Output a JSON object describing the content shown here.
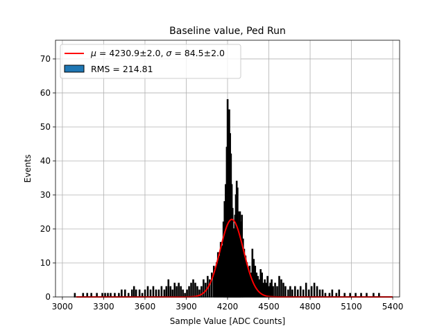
{
  "chart_data": {
    "type": "histogram",
    "title": "Baseline value, Ped Run",
    "xlabel": "Sample Value [ADC Counts]",
    "ylabel": "Events",
    "xlim": [
      2950,
      5450
    ],
    "ylim": [
      0,
      75.5
    ],
    "xticks": [
      3000,
      3300,
      3600,
      3900,
      4200,
      4500,
      4800,
      5100,
      5400
    ],
    "yticks": [
      0,
      10,
      20,
      30,
      40,
      50,
      60,
      70
    ],
    "grid": true,
    "legend_position": "top-left",
    "series": [
      {
        "name": "RMS = 214.81",
        "kind": "histogram",
        "color": "#1f77b4",
        "edgecolor": "#000000",
        "bins": [
          {
            "x": 3090,
            "y": 1
          },
          {
            "x": 3150,
            "y": 1
          },
          {
            "x": 3180,
            "y": 1
          },
          {
            "x": 3210,
            "y": 1
          },
          {
            "x": 3250,
            "y": 1
          },
          {
            "x": 3290,
            "y": 1
          },
          {
            "x": 3310,
            "y": 1
          },
          {
            "x": 3330,
            "y": 1
          },
          {
            "x": 3350,
            "y": 1
          },
          {
            "x": 3380,
            "y": 1
          },
          {
            "x": 3410,
            "y": 1
          },
          {
            "x": 3430,
            "y": 2
          },
          {
            "x": 3455,
            "y": 2
          },
          {
            "x": 3480,
            "y": 1
          },
          {
            "x": 3505,
            "y": 2
          },
          {
            "x": 3520,
            "y": 3
          },
          {
            "x": 3535,
            "y": 2
          },
          {
            "x": 3560,
            "y": 2
          },
          {
            "x": 3580,
            "y": 1
          },
          {
            "x": 3600,
            "y": 2
          },
          {
            "x": 3620,
            "y": 3
          },
          {
            "x": 3640,
            "y": 2
          },
          {
            "x": 3660,
            "y": 3
          },
          {
            "x": 3680,
            "y": 2
          },
          {
            "x": 3700,
            "y": 2
          },
          {
            "x": 3720,
            "y": 3
          },
          {
            "x": 3740,
            "y": 2
          },
          {
            "x": 3755,
            "y": 3
          },
          {
            "x": 3770,
            "y": 5
          },
          {
            "x": 3785,
            "y": 3
          },
          {
            "x": 3800,
            "y": 2
          },
          {
            "x": 3815,
            "y": 4
          },
          {
            "x": 3830,
            "y": 3
          },
          {
            "x": 3845,
            "y": 4
          },
          {
            "x": 3860,
            "y": 3
          },
          {
            "x": 3875,
            "y": 2
          },
          {
            "x": 3890,
            "y": 1
          },
          {
            "x": 3905,
            "y": 2
          },
          {
            "x": 3920,
            "y": 3
          },
          {
            "x": 3935,
            "y": 4
          },
          {
            "x": 3950,
            "y": 5
          },
          {
            "x": 3965,
            "y": 4
          },
          {
            "x": 3980,
            "y": 3
          },
          {
            "x": 3995,
            "y": 2
          },
          {
            "x": 4010,
            "y": 3
          },
          {
            "x": 4025,
            "y": 5
          },
          {
            "x": 4040,
            "y": 4
          },
          {
            "x": 4055,
            "y": 6
          },
          {
            "x": 4070,
            "y": 5
          },
          {
            "x": 4085,
            "y": 7
          },
          {
            "x": 4100,
            "y": 9
          },
          {
            "x": 4110,
            "y": 8
          },
          {
            "x": 4120,
            "y": 10
          },
          {
            "x": 4130,
            "y": 13
          },
          {
            "x": 4140,
            "y": 12
          },
          {
            "x": 4150,
            "y": 16
          },
          {
            "x": 4160,
            "y": 15
          },
          {
            "x": 4170,
            "y": 22
          },
          {
            "x": 4178,
            "y": 28
          },
          {
            "x": 4186,
            "y": 33
          },
          {
            "x": 4194,
            "y": 44
          },
          {
            "x": 4200,
            "y": 58
          },
          {
            "x": 4206,
            "y": 52
          },
          {
            "x": 4212,
            "y": 55
          },
          {
            "x": 4218,
            "y": 48
          },
          {
            "x": 4224,
            "y": 42
          },
          {
            "x": 4230,
            "y": 33
          },
          {
            "x": 4236,
            "y": 26
          },
          {
            "x": 4242,
            "y": 20
          },
          {
            "x": 4248,
            "y": 18
          },
          {
            "x": 4254,
            "y": 24
          },
          {
            "x": 4260,
            "y": 30
          },
          {
            "x": 4266,
            "y": 34
          },
          {
            "x": 4272,
            "y": 32
          },
          {
            "x": 4278,
            "y": 25
          },
          {
            "x": 4284,
            "y": 22
          },
          {
            "x": 4290,
            "y": 25
          },
          {
            "x": 4296,
            "y": 22
          },
          {
            "x": 4304,
            "y": 24
          },
          {
            "x": 4312,
            "y": 17
          },
          {
            "x": 4320,
            "y": 14
          },
          {
            "x": 4330,
            "y": 12
          },
          {
            "x": 4340,
            "y": 10
          },
          {
            "x": 4350,
            "y": 8
          },
          {
            "x": 4360,
            "y": 9
          },
          {
            "x": 4370,
            "y": 7
          },
          {
            "x": 4380,
            "y": 14
          },
          {
            "x": 4390,
            "y": 11
          },
          {
            "x": 4400,
            "y": 9
          },
          {
            "x": 4410,
            "y": 7
          },
          {
            "x": 4420,
            "y": 6
          },
          {
            "x": 4430,
            "y": 5
          },
          {
            "x": 4440,
            "y": 8
          },
          {
            "x": 4450,
            "y": 7
          },
          {
            "x": 4460,
            "y": 4
          },
          {
            "x": 4470,
            "y": 5
          },
          {
            "x": 4480,
            "y": 4
          },
          {
            "x": 4490,
            "y": 6
          },
          {
            "x": 4500,
            "y": 3
          },
          {
            "x": 4510,
            "y": 4
          },
          {
            "x": 4520,
            "y": 5
          },
          {
            "x": 4530,
            "y": 3
          },
          {
            "x": 4545,
            "y": 4
          },
          {
            "x": 4560,
            "y": 3
          },
          {
            "x": 4575,
            "y": 6
          },
          {
            "x": 4590,
            "y": 5
          },
          {
            "x": 4605,
            "y": 4
          },
          {
            "x": 4620,
            "y": 3
          },
          {
            "x": 4640,
            "y": 2
          },
          {
            "x": 4655,
            "y": 3
          },
          {
            "x": 4670,
            "y": 2
          },
          {
            "x": 4690,
            "y": 3
          },
          {
            "x": 4710,
            "y": 2
          },
          {
            "x": 4730,
            "y": 3
          },
          {
            "x": 4750,
            "y": 2
          },
          {
            "x": 4770,
            "y": 4
          },
          {
            "x": 4790,
            "y": 2
          },
          {
            "x": 4810,
            "y": 3
          },
          {
            "x": 4830,
            "y": 4
          },
          {
            "x": 4850,
            "y": 3
          },
          {
            "x": 4870,
            "y": 2
          },
          {
            "x": 4890,
            "y": 2
          },
          {
            "x": 4910,
            "y": 1
          },
          {
            "x": 4940,
            "y": 1
          },
          {
            "x": 4960,
            "y": 2
          },
          {
            "x": 4990,
            "y": 1
          },
          {
            "x": 5010,
            "y": 2
          },
          {
            "x": 5050,
            "y": 1
          },
          {
            "x": 5090,
            "y": 1
          },
          {
            "x": 5130,
            "y": 1
          },
          {
            "x": 5170,
            "y": 1
          },
          {
            "x": 5210,
            "y": 1
          },
          {
            "x": 5260,
            "y": 1
          },
          {
            "x": 5300,
            "y": 1
          }
        ]
      },
      {
        "name": "$\\mu=$4230.9±2.0, $\\sigma=$84.5±2.0",
        "kind": "gaussian_fit",
        "color": "#ff0000",
        "mu": 4230.9,
        "sigma": 84.5,
        "amplitude": 22.8,
        "x_range": [
          3100,
          5400
        ]
      }
    ]
  },
  "legend": {
    "fit_label_mu": "μ",
    "fit_label_eq1": " = 4230.9±2.0, ",
    "fit_label_sigma": "σ",
    "fit_label_eq2": " = 84.5±2.0",
    "hist_label": "RMS = 214.81"
  }
}
